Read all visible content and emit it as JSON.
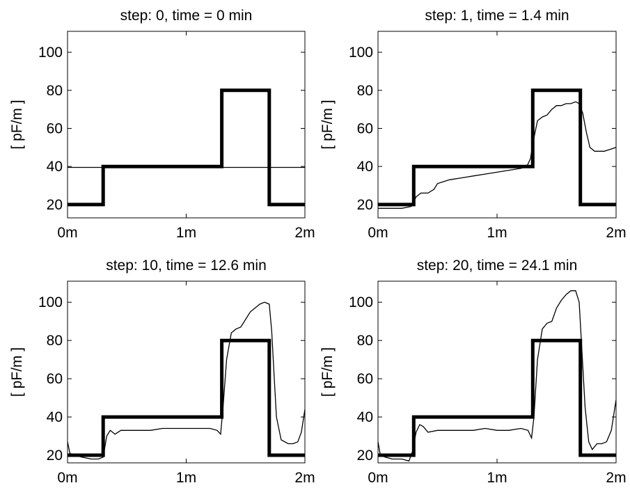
{
  "figure": {
    "background": "#ffffff",
    "line_color": "#000000"
  },
  "chart_data": [
    {
      "type": "line",
      "title": "step: 0, time = 0 min",
      "xlabel": "",
      "ylabel": "[ pF/m ]",
      "xlim": [
        0,
        2
      ],
      "ylim": [
        13,
        111
      ],
      "x_ticks": [
        0,
        1,
        2
      ],
      "x_tick_labels": [
        "0m",
        "1m",
        "2m"
      ],
      "y_ticks": [
        20,
        40,
        60,
        80,
        100
      ],
      "y_tick_labels": [
        "20",
        "40",
        "60",
        "80",
        "100"
      ],
      "grid": false,
      "series": [
        {
          "style": "thick",
          "x": [
            0,
            0.3,
            0.3,
            1.3,
            1.3,
            1.7,
            1.7,
            2.0
          ],
          "y": [
            20,
            20,
            40,
            40,
            80,
            80,
            20,
            20
          ]
        },
        {
          "style": "thin",
          "x": [
            0,
            2.0
          ],
          "y": [
            39.5,
            39.5
          ]
        }
      ]
    },
    {
      "type": "line",
      "title": "step: 1, time = 1.4 min",
      "xlabel": "",
      "ylabel": "[ pF/m ]",
      "xlim": [
        0,
        2
      ],
      "ylim": [
        13,
        111
      ],
      "x_ticks": [
        0,
        1,
        2
      ],
      "x_tick_labels": [
        "0m",
        "1m",
        "2m"
      ],
      "y_ticks": [
        20,
        40,
        60,
        80,
        100
      ],
      "y_tick_labels": [
        "20",
        "40",
        "60",
        "80",
        "100"
      ],
      "grid": false,
      "series": [
        {
          "style": "thick",
          "x": [
            0,
            0.3,
            0.3,
            1.3,
            1.3,
            1.7,
            1.7,
            2.0
          ],
          "y": [
            20,
            20,
            40,
            40,
            80,
            80,
            20,
            20
          ]
        },
        {
          "style": "thin",
          "x": [
            0,
            0.1,
            0.2,
            0.28,
            0.32,
            0.36,
            0.42,
            0.47,
            0.5,
            0.55,
            0.6,
            0.7,
            0.8,
            0.9,
            1.0,
            1.1,
            1.2,
            1.25,
            1.28,
            1.31,
            1.34,
            1.38,
            1.42,
            1.46,
            1.5,
            1.54,
            1.58,
            1.62,
            1.66,
            1.69,
            1.72,
            1.75,
            1.78,
            1.82,
            1.86,
            1.9,
            1.95,
            2.0
          ],
          "y": [
            18,
            18,
            18,
            19,
            24,
            26,
            26,
            28,
            31,
            32,
            33,
            34,
            35,
            36,
            37,
            38,
            39,
            40,
            44,
            55,
            64,
            66,
            67,
            70,
            72,
            72,
            73,
            73,
            74,
            73,
            68,
            58,
            50,
            48,
            48,
            48,
            49,
            50
          ]
        }
      ]
    },
    {
      "type": "line",
      "title": "step: 10, time = 12.6 min",
      "xlabel": "",
      "ylabel": "[ pF/m ]",
      "xlim": [
        0,
        2
      ],
      "ylim": [
        16,
        111
      ],
      "x_ticks": [
        0,
        1,
        2
      ],
      "x_tick_labels": [
        "0m",
        "1m",
        "2m"
      ],
      "y_ticks": [
        20,
        40,
        60,
        80,
        100
      ],
      "y_tick_labels": [
        "20",
        "40",
        "60",
        "80",
        "100"
      ],
      "grid": false,
      "series": [
        {
          "style": "thick",
          "x": [
            0,
            0.3,
            0.3,
            1.3,
            1.3,
            1.7,
            1.7,
            2.0
          ],
          "y": [
            20,
            20,
            40,
            40,
            80,
            80,
            20,
            20
          ]
        },
        {
          "style": "thin",
          "x": [
            0,
            0.02,
            0.06,
            0.12,
            0.2,
            0.26,
            0.3,
            0.33,
            0.36,
            0.4,
            0.45,
            0.5,
            0.6,
            0.7,
            0.8,
            0.9,
            1.0,
            1.1,
            1.2,
            1.26,
            1.29,
            1.31,
            1.34,
            1.38,
            1.42,
            1.46,
            1.5,
            1.54,
            1.58,
            1.62,
            1.66,
            1.7,
            1.72,
            1.74,
            1.76,
            1.8,
            1.86,
            1.9,
            1.94,
            1.97,
            2.0
          ],
          "y": [
            27,
            21,
            20,
            19,
            18,
            18,
            19,
            30,
            33,
            31,
            33,
            33,
            33,
            33,
            34,
            34,
            34,
            34,
            34,
            33,
            31,
            45,
            70,
            84,
            86,
            87,
            91,
            95,
            97,
            99,
            100,
            99,
            85,
            62,
            40,
            28,
            26,
            26,
            27,
            32,
            44
          ]
        }
      ]
    },
    {
      "type": "line",
      "title": "step: 20, time = 24.1 min",
      "xlabel": "",
      "ylabel": "[ pF/m ]",
      "xlim": [
        0,
        2
      ],
      "ylim": [
        16,
        111
      ],
      "x_ticks": [
        0,
        1,
        2
      ],
      "x_tick_labels": [
        "0m",
        "1m",
        "2m"
      ],
      "y_ticks": [
        20,
        40,
        60,
        80,
        100
      ],
      "y_tick_labels": [
        "20",
        "40",
        "60",
        "80",
        "100"
      ],
      "grid": false,
      "series": [
        {
          "style": "thick",
          "x": [
            0,
            0.3,
            0.3,
            1.3,
            1.3,
            1.7,
            1.7,
            2.0
          ],
          "y": [
            20,
            20,
            40,
            40,
            80,
            80,
            20,
            20
          ]
        },
        {
          "style": "thin",
          "x": [
            0,
            0.02,
            0.06,
            0.12,
            0.2,
            0.26,
            0.29,
            0.32,
            0.35,
            0.38,
            0.42,
            0.5,
            0.6,
            0.7,
            0.8,
            0.9,
            1.0,
            1.1,
            1.2,
            1.26,
            1.29,
            1.31,
            1.34,
            1.38,
            1.42,
            1.46,
            1.5,
            1.54,
            1.58,
            1.62,
            1.66,
            1.69,
            1.71,
            1.74,
            1.77,
            1.8,
            1.84,
            1.88,
            1.92,
            1.96,
            2.0
          ],
          "y": [
            27,
            20,
            19,
            18,
            18,
            17,
            22,
            32,
            36,
            35,
            32,
            33,
            33,
            33,
            33,
            34,
            33,
            33,
            34,
            33,
            29,
            40,
            70,
            86,
            89,
            90,
            97,
            101,
            104,
            106,
            106,
            100,
            78,
            45,
            27,
            23,
            26,
            26,
            27,
            33,
            49
          ]
        }
      ]
    }
  ]
}
